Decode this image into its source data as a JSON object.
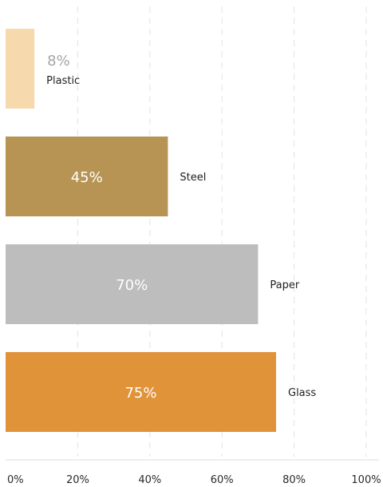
{
  "chart_data": {
    "type": "bar",
    "orientation": "horizontal",
    "categories": [
      "Plastic",
      "Steel",
      "Paper",
      "Glass"
    ],
    "values": [
      8,
      45,
      70,
      75
    ],
    "value_labels": [
      "8%",
      "45%",
      "70%",
      "75%"
    ],
    "colors": [
      "#f6d9ad",
      "#b79454",
      "#bdbdbd",
      "#e09339"
    ],
    "value_label_colors": [
      "#a5a5a5",
      "#ffffff",
      "#ffffff",
      "#ffffff"
    ],
    "xlim": [
      0,
      100
    ],
    "x_ticks": [
      0,
      20,
      40,
      60,
      80,
      100
    ],
    "x_tick_labels": [
      "0%",
      "20%",
      "40%",
      "60%",
      "80%",
      "100%"
    ],
    "grid": true,
    "title": "",
    "xlabel": "",
    "ylabel": ""
  }
}
